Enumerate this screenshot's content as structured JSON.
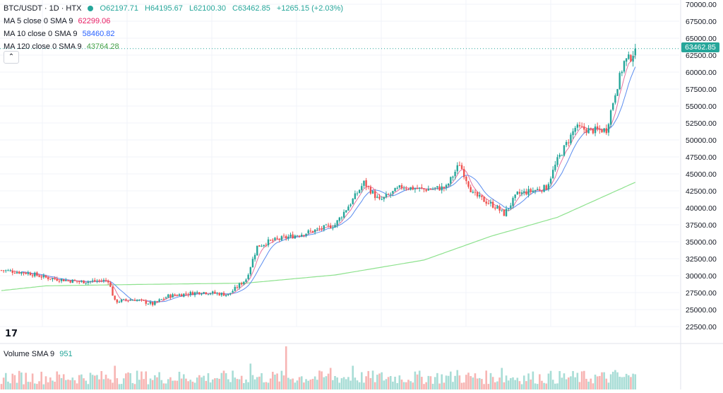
{
  "header": {
    "symbol": "BTC/USDT · 1D · HTX",
    "open": "O62197.71",
    "high": "H64195.67",
    "low": "L62100.30",
    "close": "C63462.85",
    "change": "+1265.15 (+2.03%)",
    "status_color": "#26a69a"
  },
  "indicators": [
    {
      "label": "MA 5 close 0 SMA 9",
      "value": "62299.06",
      "color": "#e91e63"
    },
    {
      "label": "MA 10 close 0 SMA 9",
      "value": "58460.82",
      "color": "#2962ff"
    },
    {
      "label": "MA 120 close 0 SMA 9",
      "value": "43764.28",
      "color": "#43a047"
    }
  ],
  "collapse_icon": "chevron-up-icon",
  "logo_text": "17",
  "volume_label": "Volume SMA 9",
  "volume_value": "951",
  "last_price_tag": "63462.85",
  "price_axis_labels": [
    "70000.00",
    "67500.00",
    "65000.00",
    "62500.00",
    "60000.00",
    "57500.00",
    "55000.00",
    "52500.00",
    "50000.00",
    "47500.00",
    "45000.00",
    "42500.00",
    "40000.00",
    "37500.00",
    "35000.00",
    "32500.00",
    "30000.00",
    "27500.00",
    "25000.00",
    "22500.00"
  ],
  "colors": {
    "up": "#26a69a",
    "down": "#ef5350",
    "grid": "#f0f3fa",
    "last_line": "#26a69a"
  },
  "chart_data": {
    "type": "candlestick",
    "title": "BTC/USDT · 1D · HTX",
    "ylim": [
      22500,
      70000
    ],
    "y_tick_step": 2500,
    "last_close": 63462.85,
    "anchors": [
      {
        "t": 0,
        "v": 30800
      },
      {
        "t": 12,
        "v": 30400
      },
      {
        "t": 20,
        "v": 29700
      },
      {
        "t": 35,
        "v": 29100
      },
      {
        "t": 48,
        "v": 29300
      },
      {
        "t": 51,
        "v": 26200
      },
      {
        "t": 60,
        "v": 26500
      },
      {
        "t": 68,
        "v": 25800
      },
      {
        "t": 75,
        "v": 27000
      },
      {
        "t": 90,
        "v": 27600
      },
      {
        "t": 102,
        "v": 27200
      },
      {
        "t": 110,
        "v": 29500
      },
      {
        "t": 115,
        "v": 34300
      },
      {
        "t": 120,
        "v": 35000
      },
      {
        "t": 138,
        "v": 36400
      },
      {
        "t": 150,
        "v": 37500
      },
      {
        "t": 158,
        "v": 41200
      },
      {
        "t": 163,
        "v": 43700
      },
      {
        "t": 170,
        "v": 41000
      },
      {
        "t": 180,
        "v": 43100
      },
      {
        "t": 190,
        "v": 42700
      },
      {
        "t": 200,
        "v": 43000
      },
      {
        "t": 206,
        "v": 46500
      },
      {
        "t": 212,
        "v": 42000
      },
      {
        "t": 222,
        "v": 40200
      },
      {
        "t": 226,
        "v": 39100
      },
      {
        "t": 232,
        "v": 42000
      },
      {
        "t": 245,
        "v": 43000
      },
      {
        "t": 250,
        "v": 47000
      },
      {
        "t": 258,
        "v": 51800
      },
      {
        "t": 265,
        "v": 51400
      },
      {
        "t": 272,
        "v": 51500
      },
      {
        "t": 276,
        "v": 57000
      },
      {
        "t": 280,
        "v": 61500
      },
      {
        "t": 283,
        "v": 62200
      },
      {
        "t": 285,
        "v": 63462.85
      }
    ],
    "volume_spikes": [
      {
        "t": 51,
        "h": 0.55
      },
      {
        "t": 112,
        "h": 0.6
      },
      {
        "t": 128,
        "h": 1.0
      },
      {
        "t": 148,
        "h": 0.5
      },
      {
        "t": 158,
        "h": 0.55
      },
      {
        "t": 205,
        "h": 0.45
      },
      {
        "t": 225,
        "h": 0.5
      },
      {
        "t": 276,
        "h": 0.45
      }
    ],
    "ma120_anchors": [
      {
        "t": 0,
        "v": 27800
      },
      {
        "t": 20,
        "v": 28500
      },
      {
        "t": 60,
        "v": 28700
      },
      {
        "t": 110,
        "v": 28900
      },
      {
        "t": 150,
        "v": 30100
      },
      {
        "t": 190,
        "v": 32300
      },
      {
        "t": 220,
        "v": 35800
      },
      {
        "t": 250,
        "v": 38600
      },
      {
        "t": 285,
        "v": 43764.28
      }
    ],
    "ma_periods": [
      5,
      10
    ]
  }
}
